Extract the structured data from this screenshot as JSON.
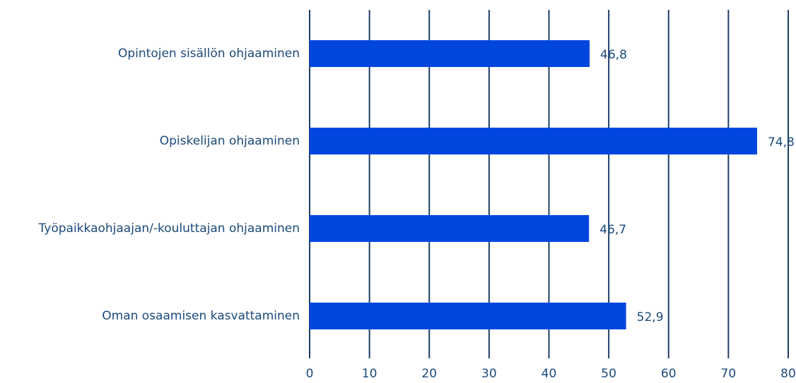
{
  "chart_data": {
    "type": "bar",
    "orientation": "horizontal",
    "categories": [
      "Opintojen sisällön ohjaaminen",
      "Opiskelijan ohjaaminen",
      "Työpaikkaohjaajan/-kouluttajan ohjaaminen",
      "Oman osaamisen kasvattaminen"
    ],
    "values": [
      46.8,
      74.8,
      46.7,
      52.9
    ],
    "value_labels": [
      "46,8",
      "74,8",
      "46,7",
      "52,9"
    ],
    "color": "#0046de",
    "xlim": [
      0,
      80
    ],
    "xticks": [
      0,
      10,
      20,
      30,
      40,
      50,
      60,
      70,
      80
    ],
    "grid": true
  }
}
